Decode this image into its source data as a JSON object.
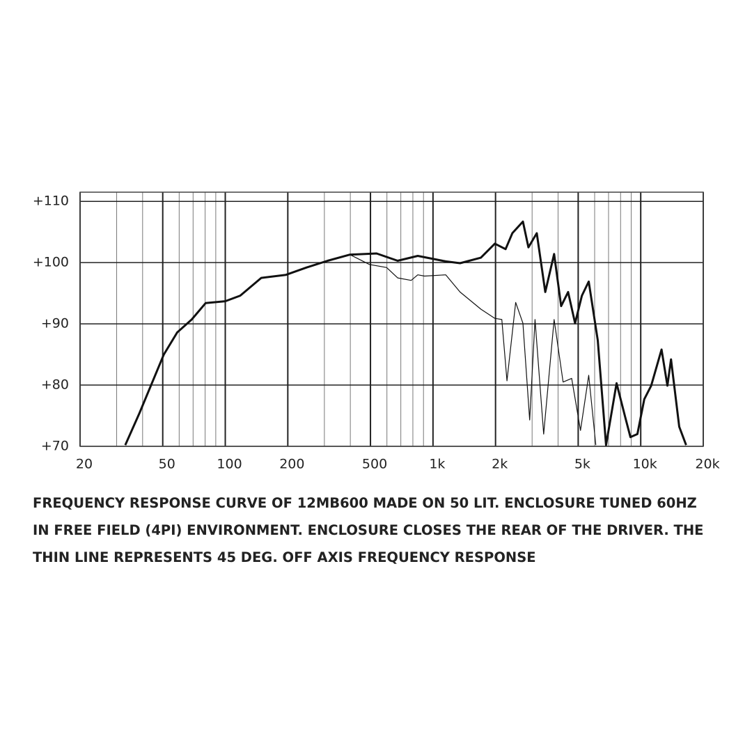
{
  "chart_data": {
    "type": "line",
    "xscale": "log",
    "xlim": [
      20,
      20000
    ],
    "ylim": [
      70,
      111.5
    ],
    "xticks": [
      20,
      50,
      100,
      200,
      500,
      {
        "value": 1000,
        "label": "1k"
      },
      {
        "value": 2000,
        "label": "2k"
      },
      {
        "value": 5000,
        "label": "5k"
      },
      {
        "value": 10000,
        "label": "10k"
      },
      {
        "value": 20000,
        "label": "20k"
      }
    ],
    "xminor": [
      30,
      40,
      60,
      70,
      80,
      90,
      300,
      400,
      600,
      700,
      800,
      900,
      3000,
      4000,
      6000,
      7000,
      8000,
      9000
    ],
    "yticks": [
      {
        "value": 70,
        "label": "+70"
      },
      {
        "value": 80,
        "label": "+80"
      },
      {
        "value": 90,
        "label": "+90"
      },
      {
        "value": 100,
        "label": "+100"
      },
      {
        "value": 110,
        "label": "+110"
      }
    ],
    "grid": true,
    "series": [
      {
        "color": "#111",
        "width": 3,
        "x": [
          33,
          38.6,
          50.6,
          58.7,
          68.9,
          80.5,
          100,
          118,
          149,
          196,
          246,
          311,
          398,
          535,
          676,
          845,
          1152,
          1350,
          1700,
          1985,
          2236,
          2410,
          2710,
          2880,
          3160,
          3470,
          3830,
          4140,
          4470,
          4830,
          5210,
          5620,
          6210,
          6810,
          7650,
          8400,
          8920,
          9640,
          10400,
          11230,
          12600,
          13440,
          13990,
          15330,
          16540
        ],
        "values": [
          70.2,
          75.4,
          85.0,
          88.6,
          90.7,
          93.4,
          93.7,
          94.6,
          97.5,
          98.0,
          99.2,
          100.3,
          101.3,
          101.5,
          100.3,
          101.1,
          100.2,
          99.9,
          100.8,
          103.1,
          102.2,
          104.8,
          106.7,
          102.5,
          104.8,
          95.2,
          101.4,
          92.9,
          95.2,
          90.1,
          94.6,
          96.9,
          87.3,
          70.2,
          80.3,
          74.9,
          71.5,
          72.0,
          77.7,
          79.9,
          85.8,
          79.9,
          84.2,
          73.2,
          70.2
        ]
      },
      {
        "color": "#111",
        "width": 1.2,
        "x": [
          33,
          38.6,
          50.6,
          58.7,
          68.9,
          80.5,
          100,
          118,
          149,
          196,
          246,
          311,
          398,
          494,
          598,
          676,
          785,
          845,
          911,
          1152,
          1350,
          1700,
          1985,
          2145,
          2270,
          2500,
          2710,
          2920,
          3100,
          3410,
          3830,
          4230,
          4650,
          5130,
          5620,
          6080
        ],
        "values": [
          70.2,
          75.4,
          85.0,
          88.6,
          90.7,
          93.4,
          93.7,
          94.6,
          97.5,
          98.0,
          99.2,
          100.3,
          101.3,
          99.7,
          99.2,
          97.5,
          97.1,
          98.0,
          97.8,
          98.0,
          95.2,
          92.4,
          90.9,
          90.7,
          80.7,
          93.5,
          90.1,
          74.3,
          90.7,
          72.0,
          90.7,
          80.5,
          81.1,
          72.6,
          81.6,
          70.2
        ]
      }
    ]
  },
  "caption": "FREQUENCY RESPONSE CURVE OF 12MB600 MADE ON 50 LIT. ENCLOSURE TUNED 60HZ IN FREE FIELD (4PI) ENVIRONMENT. ENCLOSURE CLOSES THE REAR OF THE DRIVER. THE THIN LINE REPRESENTS 45 DEG. OFF AXIS FREQUENCY RESPONSE"
}
